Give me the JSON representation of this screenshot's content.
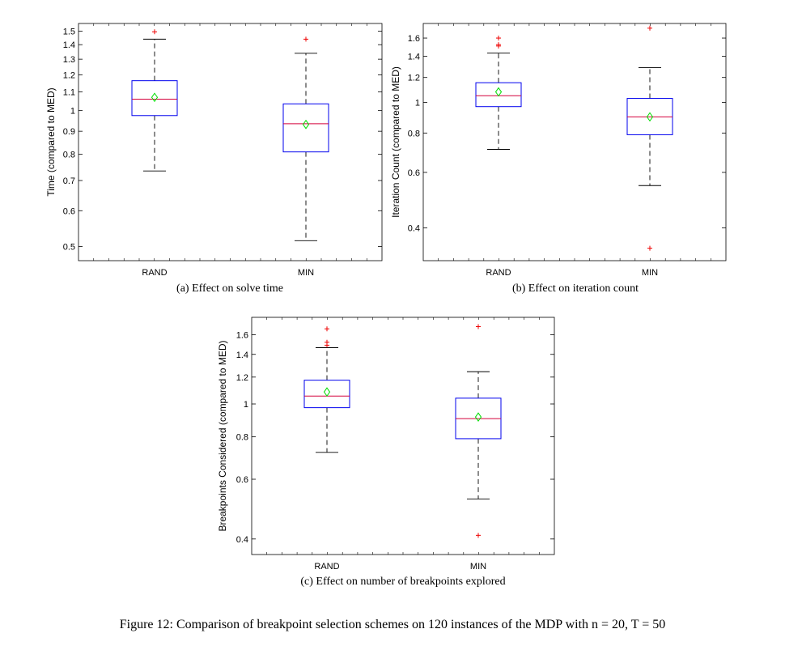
{
  "figure": {
    "caption": "Figure 12: Comparison of breakpoint selection schemes on 120 instances of the MDP with n = 20, T = 50"
  },
  "colors": {
    "box": "#0000ee",
    "median": "#d4003c",
    "mean": "#00dd00",
    "outlier": "#ee0000",
    "whisker": "#000000"
  },
  "chart_data": [
    {
      "type": "box",
      "caption": "(a) Effect on solve time",
      "ylabel": "Time (compared to MED)",
      "yscale": "log",
      "ylim": [
        0.465,
        1.56
      ],
      "yticks": [
        0.5,
        0.6,
        0.7,
        0.8,
        0.9,
        1,
        1.1,
        1.2,
        1.3,
        1.4,
        1.5
      ],
      "ytick_labels": [
        "0.5",
        "0.6",
        "0.7",
        "0.8",
        "0.9",
        "1",
        "1.1",
        "1.2",
        "1.3",
        "1.4",
        "1.5"
      ],
      "categories": [
        "RAND",
        "MIN"
      ],
      "boxes": [
        {
          "whisker_low": 0.735,
          "q1": 0.975,
          "median": 1.06,
          "q3": 1.165,
          "whisker_high": 1.44,
          "mean": 1.07,
          "outliers": [
            1.495
          ]
        },
        {
          "whisker_low": 0.515,
          "q1": 0.81,
          "median": 0.935,
          "q3": 1.035,
          "whisker_high": 1.34,
          "mean": 0.932,
          "outliers": [
            1.44
          ]
        }
      ]
    },
    {
      "type": "box",
      "caption": "(b) Effect on iteration count",
      "ylabel": "Iteration Count (compared to MED)",
      "yscale": "log",
      "ylim": [
        0.315,
        1.78
      ],
      "yticks": [
        0.4,
        0.6,
        0.8,
        1,
        1.2,
        1.4,
        1.6
      ],
      "ytick_labels": [
        "0.4",
        "0.6",
        "0.8",
        "1",
        "1.2",
        "1.4",
        "1.6"
      ],
      "categories": [
        "RAND",
        "MIN"
      ],
      "boxes": [
        {
          "whisker_low": 0.71,
          "q1": 0.97,
          "median": 1.05,
          "q3": 1.155,
          "whisker_high": 1.435,
          "mean": 1.08,
          "outliers": [
            1.6,
            1.525,
            1.51
          ]
        },
        {
          "whisker_low": 0.545,
          "q1": 0.79,
          "median": 0.9,
          "q3": 1.03,
          "whisker_high": 1.29,
          "mean": 0.9,
          "outliers": [
            1.72,
            0.345
          ]
        }
      ]
    },
    {
      "type": "box",
      "caption": "(c) Effect on number of breakpoints explored",
      "ylabel": "Breakpoints Considered (compared to MED)",
      "yscale": "log",
      "ylim": [
        0.36,
        1.8
      ],
      "yticks": [
        0.4,
        0.6,
        0.8,
        1,
        1.2,
        1.4,
        1.6
      ],
      "ytick_labels": [
        "0.4",
        "0.6",
        "0.8",
        "1",
        "1.2",
        "1.4",
        "1.6"
      ],
      "categories": [
        "RAND",
        "MIN"
      ],
      "boxes": [
        {
          "whisker_low": 0.72,
          "q1": 0.975,
          "median": 1.055,
          "q3": 1.175,
          "whisker_high": 1.465,
          "mean": 1.085,
          "outliers": [
            1.665,
            1.52,
            1.49
          ]
        },
        {
          "whisker_low": 0.525,
          "q1": 0.79,
          "median": 0.905,
          "q3": 1.04,
          "whisker_high": 1.245,
          "mean": 0.915,
          "outliers": [
            1.69,
            0.41
          ]
        }
      ]
    }
  ]
}
